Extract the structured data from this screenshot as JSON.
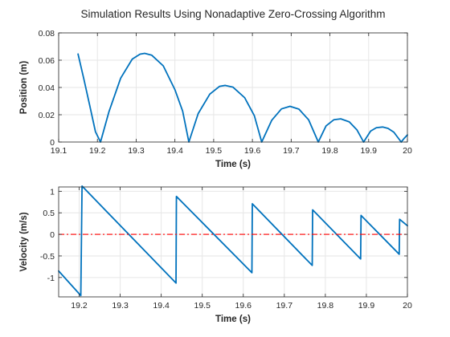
{
  "figure": {
    "title": "Simulation Results Using Nonadaptive Zero-Crossing Algorithm"
  },
  "chart_data": [
    {
      "type": "line",
      "title": "",
      "xlabel": "Time (s)",
      "ylabel": "Position (m)",
      "xlim": [
        19.1,
        20.0
      ],
      "ylim": [
        0,
        0.08
      ],
      "xticks": [
        "19.1",
        "19.2",
        "19.3",
        "19.4",
        "19.5",
        "19.6",
        "19.7",
        "19.8",
        "19.9",
        "20"
      ],
      "xtick_values": [
        19.1,
        19.2,
        19.3,
        19.4,
        19.5,
        19.6,
        19.7,
        19.8,
        19.9,
        20.0
      ],
      "yticks": [
        "0",
        "0.02",
        "0.04",
        "0.06",
        "0.08"
      ],
      "ytick_values": [
        0,
        0.02,
        0.04,
        0.06,
        0.08
      ],
      "grid": true,
      "series": [
        {
          "color": "#0072BD",
          "x": [
            19.15,
            19.165,
            19.18,
            19.195,
            19.208,
            19.23,
            19.26,
            19.29,
            19.31,
            19.322,
            19.34,
            19.37,
            19.4,
            19.42,
            19.436,
            19.46,
            19.49,
            19.515,
            19.53,
            19.55,
            19.58,
            19.605,
            19.624,
            19.65,
            19.675,
            19.697,
            19.72,
            19.745,
            19.77,
            19.79,
            19.81,
            19.828,
            19.85,
            19.87,
            19.887,
            19.905,
            19.92,
            19.936,
            19.95,
            19.965,
            19.984,
            19.992,
            20.0
          ],
          "y": [
            0.0645,
            0.0462,
            0.027,
            0.0075,
            0.0,
            0.0224,
            0.0468,
            0.0608,
            0.0644,
            0.065,
            0.0637,
            0.0558,
            0.0384,
            0.0226,
            0.0,
            0.0208,
            0.0351,
            0.0408,
            0.0415,
            0.0402,
            0.0325,
            0.0193,
            0.0,
            0.016,
            0.0243,
            0.0262,
            0.0241,
            0.0163,
            0.0,
            0.0118,
            0.0163,
            0.017,
            0.0148,
            0.0088,
            0.0,
            0.008,
            0.0105,
            0.011,
            0.01,
            0.0072,
            0.0,
            0.0028,
            0.0052
          ]
        }
      ]
    },
    {
      "type": "line",
      "title": "",
      "xlabel": "Time (s)",
      "ylabel": "Velocity (m/s)",
      "xlim": [
        19.15,
        20.0
      ],
      "ylim": [
        -1.45,
        1.1
      ],
      "xticks": [
        "19.2",
        "19.3",
        "19.4",
        "19.5",
        "19.6",
        "19.7",
        "19.8",
        "19.9",
        "20"
      ],
      "xtick_values": [
        19.2,
        19.3,
        19.4,
        19.5,
        19.6,
        19.7,
        19.8,
        19.9,
        20.0
      ],
      "yticks": [
        "-1",
        "-0.5",
        "0",
        "0.5",
        "1"
      ],
      "ytick_values": [
        -1,
        -0.5,
        0,
        0.5,
        1
      ],
      "grid": true,
      "series": [
        {
          "color": "#0072BD",
          "style": "solid",
          "x": [
            19.15,
            19.204,
            19.207,
            19.436,
            19.437,
            19.621,
            19.622,
            19.768,
            19.769,
            19.886,
            19.887,
            19.98,
            19.981,
            20.0
          ],
          "y": [
            -0.85,
            -1.42,
            1.12,
            -1.13,
            0.88,
            -0.89,
            0.71,
            -0.72,
            0.57,
            -0.57,
            0.44,
            -0.46,
            0.35,
            0.2
          ]
        },
        {
          "color": "#FF0000",
          "style": "dash-dot",
          "x": [
            19.15,
            20.0
          ],
          "y": [
            0,
            0
          ]
        }
      ]
    }
  ]
}
